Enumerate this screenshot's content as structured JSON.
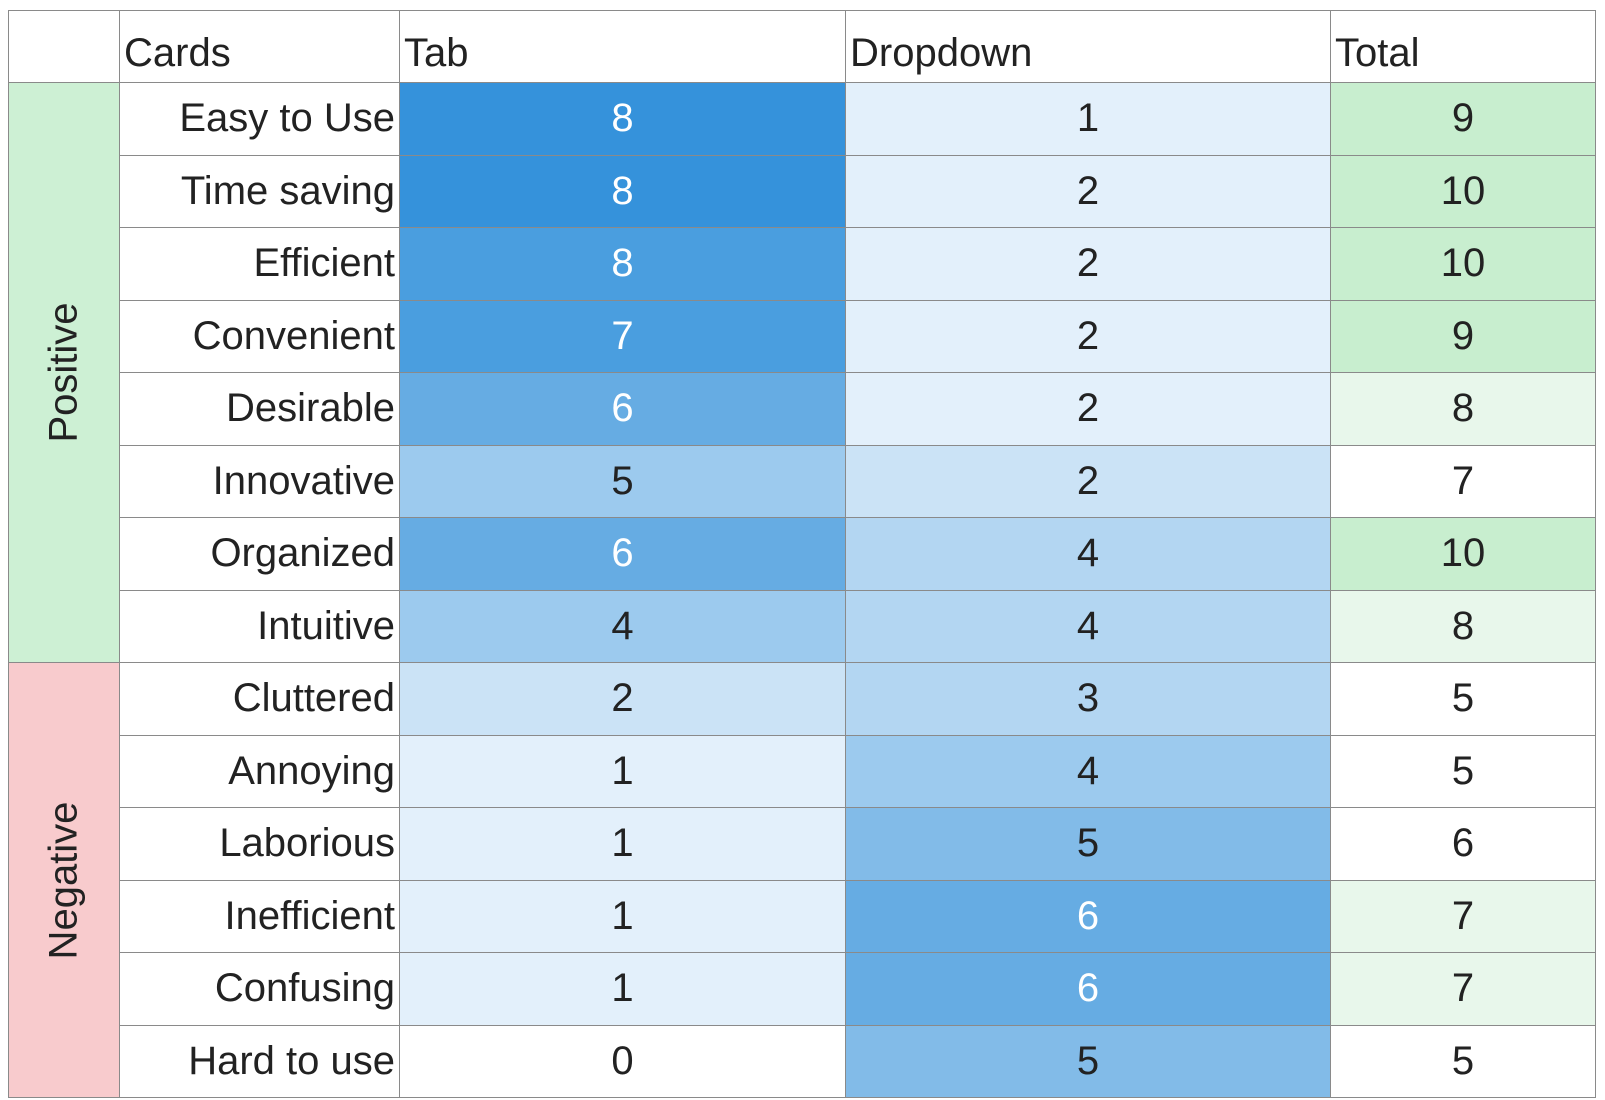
{
  "table": {
    "headers": [
      "Cards",
      "Tab",
      "Dropdown",
      "Total"
    ],
    "groups": [
      {
        "label": "Positive",
        "color": "#cdf0d4",
        "rows": [
          {
            "card": "Easy to Use",
            "tab": 8,
            "dropdown": 1,
            "total": 9,
            "colors": [
              "#3592db",
              "#e3f0fb",
              "#c8eecf"
            ]
          },
          {
            "card": "Time saving",
            "tab": 8,
            "dropdown": 2,
            "total": 10,
            "colors": [
              "#3592db",
              "#e3f0fb",
              "#c8eecf"
            ]
          },
          {
            "card": "Efficient",
            "tab": 8,
            "dropdown": 2,
            "total": 10,
            "colors": [
              "#4a9edf",
              "#e3f0fb",
              "#c8eecf"
            ]
          },
          {
            "card": "Convenient",
            "tab": 7,
            "dropdown": 2,
            "total": 9,
            "colors": [
              "#4a9edf",
              "#e3f0fb",
              "#c8eecf"
            ]
          },
          {
            "card": "Desirable",
            "tab": 6,
            "dropdown": 2,
            "total": 8,
            "colors": [
              "#66ace3",
              "#e3f0fb",
              "#e8f7eb"
            ]
          },
          {
            "card": "Innovative",
            "tab": 5,
            "dropdown": 2,
            "total": 7,
            "colors": [
              "#9ccaee",
              "#cbe3f6",
              "#ffffff"
            ]
          },
          {
            "card": "Organized",
            "tab": 6,
            "dropdown": 4,
            "total": 10,
            "colors": [
              "#66ace3",
              "#b3d6f2",
              "#c8eecf"
            ]
          },
          {
            "card": "Intuitive",
            "tab": 4,
            "dropdown": 4,
            "total": 8,
            "colors": [
              "#9ccaee",
              "#b3d6f2",
              "#e8f7eb"
            ]
          }
        ]
      },
      {
        "label": "Negative",
        "color": "#f8cbcd",
        "rows": [
          {
            "card": "Cluttered",
            "tab": 2,
            "dropdown": 3,
            "total": 5,
            "colors": [
              "#cbe3f6",
              "#b3d6f2",
              "#ffffff"
            ]
          },
          {
            "card": "Annoying",
            "tab": 1,
            "dropdown": 4,
            "total": 5,
            "colors": [
              "#e3f0fb",
              "#9ccaee",
              "#ffffff"
            ]
          },
          {
            "card": "Laborious",
            "tab": 1,
            "dropdown": 5,
            "total": 6,
            "colors": [
              "#e3f0fb",
              "#82bbe8",
              "#ffffff"
            ]
          },
          {
            "card": "Inefficient",
            "tab": 1,
            "dropdown": 6,
            "total": 7,
            "colors": [
              "#e3f0fb",
              "#66ace3",
              "#e8f7eb"
            ]
          },
          {
            "card": "Confusing",
            "tab": 1,
            "dropdown": 6,
            "total": 7,
            "colors": [
              "#e3f0fb",
              "#66ace3",
              "#e8f7eb"
            ]
          },
          {
            "card": "Hard to use",
            "tab": 0,
            "dropdown": 5,
            "total": 5,
            "colors": [
              "#ffffff",
              "#82bbe8",
              "#ffffff"
            ]
          }
        ]
      }
    ]
  }
}
